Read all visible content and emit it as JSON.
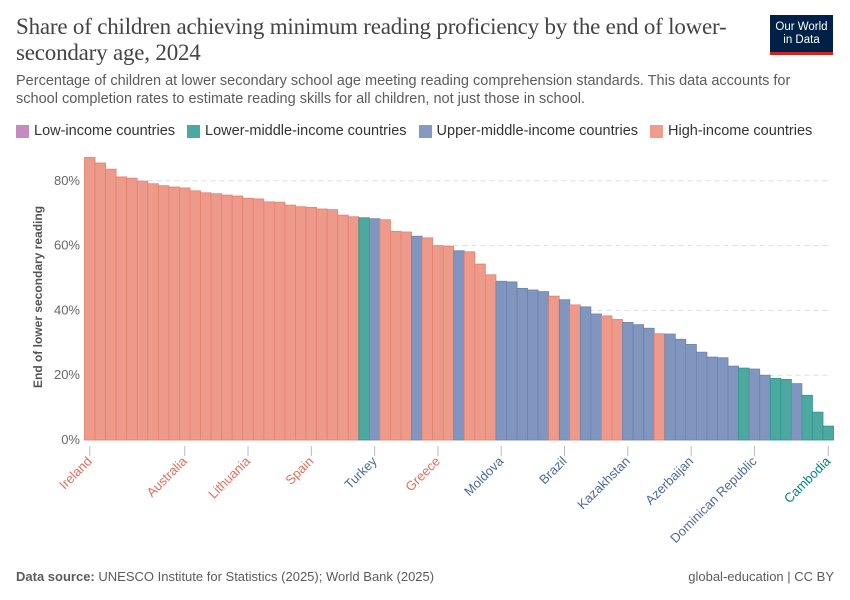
{
  "header": {
    "title": "Share of children achieving minimum reading proficiency by the end of lower-secondary age, 2024",
    "subtitle": "Percentage of children at lower secondary school age meeting reading comprehension standards. This data accounts for school completion rates to estimate reading skills for all children, not just those in school.",
    "logo_line1": "Our World",
    "logo_line2": "in Data"
  },
  "legend": [
    {
      "label": "Low-income countries",
      "color": "#C58BC0"
    },
    {
      "label": "Lower-middle-income countries",
      "color": "#4AA9A2"
    },
    {
      "label": "Upper-middle-income countries",
      "color": "#8899C0"
    },
    {
      "label": "High-income countries",
      "color": "#EE9C8E"
    }
  ],
  "colors": {
    "H": {
      "bar": "#EE9A8B",
      "edge": "#E6806E",
      "label": "#E56E5A"
    },
    "U": {
      "bar": "#8196BE",
      "edge": "#6E82AC",
      "label": "#4C6A9C"
    },
    "L": {
      "bar": "#4DA8A0",
      "edge": "#2E968D",
      "label": "#00847E"
    }
  },
  "footer": {
    "source_label": "Data source:",
    "source": "UNESCO Institute for Statistics (2025); World Bank (2025)",
    "license": "global-education | CC BY"
  },
  "chart_data": {
    "type": "bar",
    "title": "",
    "ylabel": "End of lower secondary reading",
    "ylim": [
      0,
      88
    ],
    "yticks": [
      0,
      20,
      40,
      60,
      80
    ],
    "ytick_labels": [
      "0%",
      "20%",
      "40%",
      "60%",
      "80%"
    ],
    "grid": true,
    "legend_position": "top",
    "groups": [
      "H",
      "H",
      "H",
      "H",
      "H",
      "H",
      "H",
      "H",
      "H",
      "H",
      "H",
      "H",
      "H",
      "H",
      "H",
      "H",
      "H",
      "H",
      "H",
      "H",
      "H",
      "H",
      "H",
      "H",
      "H",
      "H",
      "L",
      "U",
      "H",
      "H",
      "H",
      "U",
      "H",
      "H",
      "H",
      "U",
      "H",
      "H",
      "H",
      "U",
      "U",
      "U",
      "U",
      "U",
      "H",
      "U",
      "H",
      "U",
      "U",
      "H",
      "H",
      "U",
      "U",
      "U",
      "H",
      "U",
      "U",
      "U",
      "U",
      "U",
      "U",
      "U",
      "L",
      "U",
      "U",
      "L",
      "L",
      "U",
      "L",
      "L",
      "L"
    ],
    "values": [
      87.2,
      85.5,
      83.6,
      81.2,
      80.8,
      79.9,
      79.1,
      78.5,
      78.1,
      77.8,
      76.9,
      76.3,
      76.0,
      75.6,
      75.3,
      74.6,
      74.4,
      73.5,
      73.4,
      72.5,
      72.0,
      71.8,
      71.3,
      71.1,
      69.4,
      68.9,
      68.6,
      68.3,
      68.0,
      64.4,
      64.2,
      62.9,
      62.4,
      60.0,
      59.8,
      58.4,
      58.1,
      54.3,
      51.0,
      49.0,
      48.8,
      46.8,
      46.3,
      45.8,
      44.4,
      43.3,
      41.7,
      41.1,
      38.9,
      38.3,
      37.2,
      36.3,
      35.6,
      34.5,
      32.8,
      32.7,
      31.1,
      29.5,
      27.1,
      25.6,
      25.4,
      22.8,
      22.2,
      21.9,
      20.0,
      19.0,
      18.7,
      17.4,
      13.8,
      8.6,
      4.3
    ],
    "labeled_bars": [
      {
        "index": 0,
        "label": "Ireland",
        "group": "H"
      },
      {
        "index": 9,
        "label": "Australia",
        "group": "H"
      },
      {
        "index": 15,
        "label": "Lithuania",
        "group": "H"
      },
      {
        "index": 21,
        "label": "Spain",
        "group": "H"
      },
      {
        "index": 27,
        "label": "Turkey",
        "group": "U"
      },
      {
        "index": 33,
        "label": "Greece",
        "group": "H"
      },
      {
        "index": 39,
        "label": "Moldova",
        "group": "U"
      },
      {
        "index": 45,
        "label": "Brazil",
        "group": "U"
      },
      {
        "index": 51,
        "label": "Kazakhstan",
        "group": "U"
      },
      {
        "index": 57,
        "label": "Azerbaijan",
        "group": "U"
      },
      {
        "index": 63,
        "label": "Dominican Republic",
        "group": "U"
      },
      {
        "index": 70,
        "label": "Cambodia",
        "group": "L"
      }
    ]
  }
}
